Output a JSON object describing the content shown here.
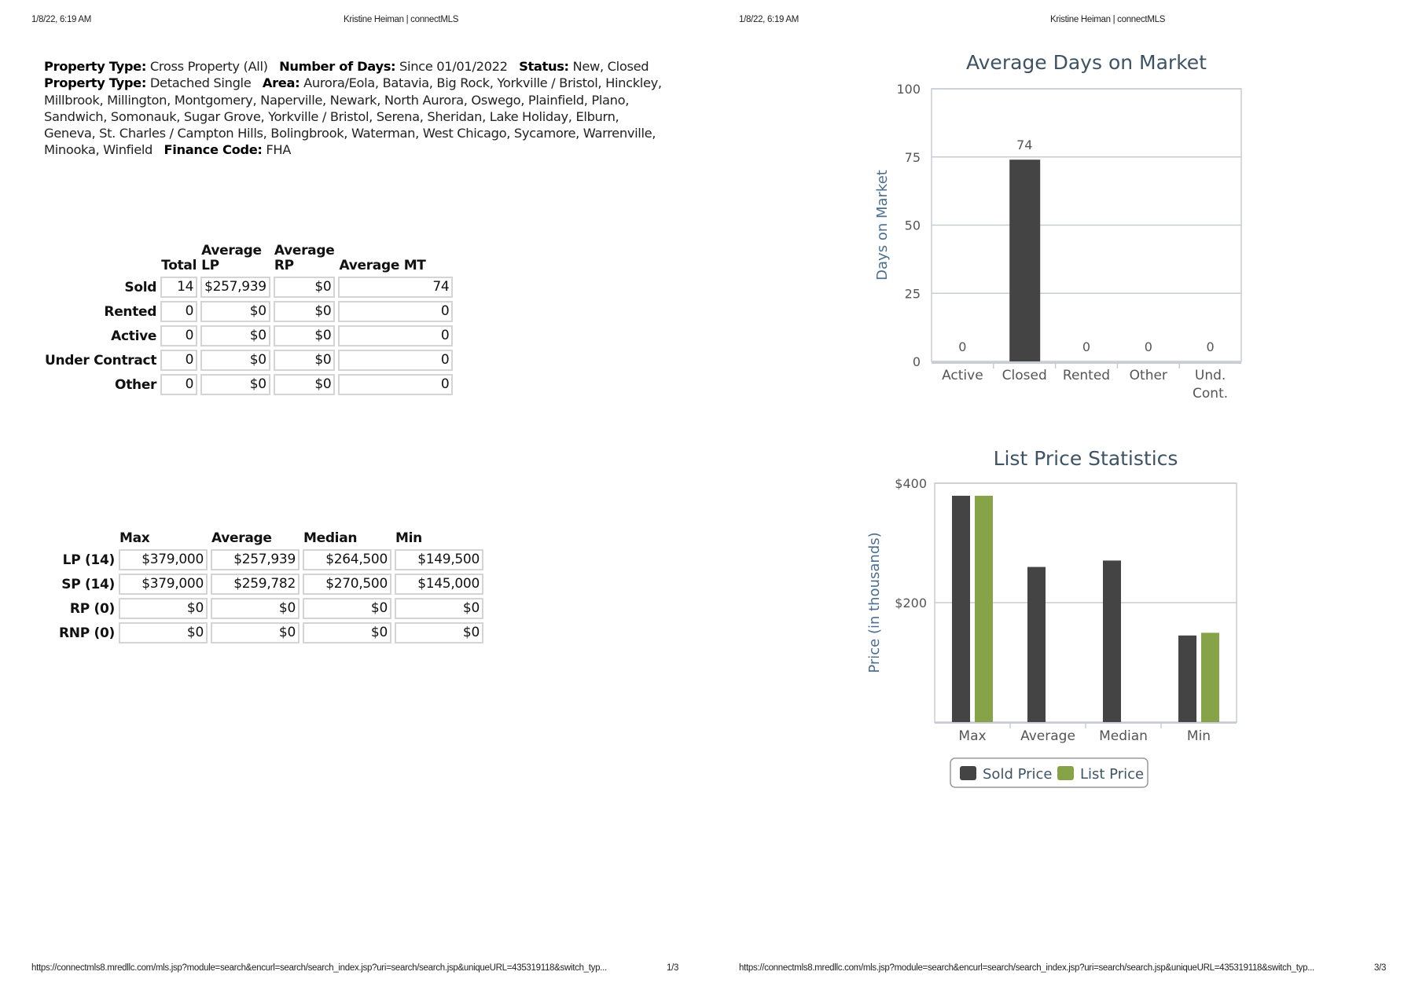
{
  "page1": {
    "header_date": "1/8/22, 6:19 AM",
    "header_title": "Kristine Heiman | connectMLS",
    "footer_url": "https://connectmls8.mredllc.com/mls.jsp?module=search&encurl=search/search_index.jsp?uri=search/search.jsp&uniqueURL=435319118&switch_typ...",
    "footer_page": "1/3"
  },
  "page3": {
    "header_date": "1/8/22, 6:19 AM",
    "header_title": "Kristine Heiman | connectMLS",
    "footer_url": "https://connectmls8.mredllc.com/mls.jsp?module=search&encurl=search/search_index.jsp?uri=search/search.jsp&uniqueURL=435319118&switch_typ...",
    "footer_page": "3/3"
  },
  "criteria": [
    {
      "label": "Property Type:",
      "value": "Cross Property (All)"
    },
    {
      "label": "Number of Days:",
      "value": "Since 01/01/2022"
    },
    {
      "label": "Status:",
      "value": "New, Closed"
    },
    {
      "label": "Property Type:",
      "value": "Detached Single"
    },
    {
      "label": "Area:",
      "value": "Aurora/Eola, Batavia, Big Rock, Yorkville / Bristol, Hinckley, Millbrook, Millington, Montgomery, Naperville, Newark, North Aurora, Oswego, Plainfield, Plano, Sandwich, Somonauk, Sugar Grove, Yorkville / Bristol, Serena, Sheridan, Lake Holiday, Elburn, Geneva, St. Charles / Campton Hills, Bolingbrook, Waterman, West Chicago, Sycamore, Warrenville, Minooka, Winfield"
    },
    {
      "label": "Finance Code:",
      "value": "FHA"
    }
  ],
  "status_table": {
    "headers": [
      "Total",
      "Average LP",
      "Average RP",
      "Average MT"
    ],
    "rows": [
      {
        "label": "Sold",
        "values": [
          "14",
          "$257,939",
          "$0",
          "74"
        ]
      },
      {
        "label": "Rented",
        "values": [
          "0",
          "$0",
          "$0",
          "0"
        ]
      },
      {
        "label": "Active",
        "values": [
          "0",
          "$0",
          "$0",
          "0"
        ]
      },
      {
        "label": "Under Contract",
        "values": [
          "0",
          "$0",
          "$0",
          "0"
        ]
      },
      {
        "label": "Other",
        "values": [
          "0",
          "$0",
          "$0",
          "0"
        ]
      }
    ]
  },
  "price_table": {
    "headers": [
      "Max",
      "Average",
      "Median",
      "Min"
    ],
    "rows": [
      {
        "label": "LP (14)",
        "values": [
          "$379,000",
          "$257,939",
          "$264,500",
          "$149,500"
        ]
      },
      {
        "label": "SP (14)",
        "values": [
          "$379,000",
          "$259,782",
          "$270,500",
          "$145,000"
        ]
      },
      {
        "label": "RP (0)",
        "values": [
          "$0",
          "$0",
          "$0",
          "$0"
        ]
      },
      {
        "label": "RNP (0)",
        "values": [
          "$0",
          "$0",
          "$0",
          "$0"
        ]
      }
    ]
  },
  "chart_data": [
    {
      "type": "bar",
      "title": "Average Days on Market",
      "xlabel": "",
      "ylabel": "Days on Market",
      "categories": [
        "Active",
        "Closed",
        "Rented",
        "Other",
        "Und. Cont."
      ],
      "values": [
        0,
        74,
        0,
        0,
        0
      ],
      "data_labels": [
        "0",
        "74",
        "0",
        "0",
        "0"
      ],
      "ylim": [
        0,
        100
      ],
      "yticks": [
        0,
        25,
        50,
        75,
        100
      ],
      "ytick_labels": [
        "0",
        "25",
        "50",
        "75",
        "100"
      ],
      "grid": true,
      "color": "#444444"
    },
    {
      "type": "bar",
      "title": "List Price Statistics",
      "xlabel": "",
      "ylabel": "Price (in thousands)",
      "categories": [
        "Max",
        "Average",
        "Median",
        "Min"
      ],
      "series": [
        {
          "name": "Sold Price",
          "values": [
            379,
            259.782,
            270.5,
            145
          ],
          "color": "#444444"
        },
        {
          "name": "List Price",
          "values": [
            379,
            null,
            null,
            149.5
          ],
          "color": "#86a447"
        }
      ],
      "ylim": [
        0,
        400
      ],
      "yticks": [
        200,
        400
      ],
      "ytick_labels": [
        "$200",
        "$400"
      ],
      "grid": true,
      "legend": "bottom-center"
    }
  ]
}
